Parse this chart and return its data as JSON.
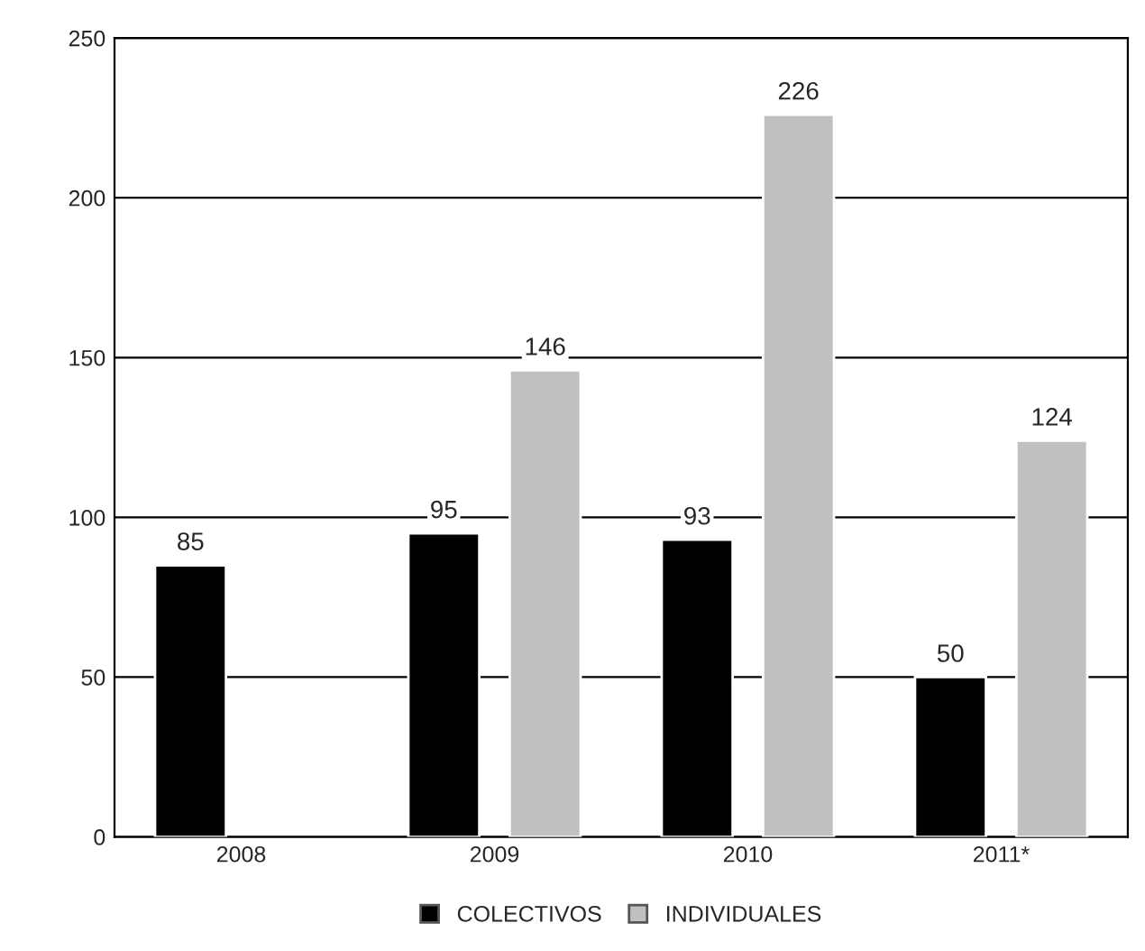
{
  "chart_data": {
    "type": "bar",
    "categories": [
      "2008",
      "2009",
      "2010",
      "2011*"
    ],
    "series": [
      {
        "name": "COLECTIVOS",
        "color": "#000000",
        "values": [
          85,
          95,
          93,
          50
        ]
      },
      {
        "name": "INDIVIDUALES",
        "color": "#c0c0c0",
        "values": [
          null,
          146,
          226,
          124
        ]
      }
    ],
    "ylim": [
      0,
      250
    ],
    "yticks": [
      0,
      50,
      100,
      150,
      200,
      250
    ],
    "grid": "y",
    "legend": "bottom",
    "data_labels": true
  }
}
